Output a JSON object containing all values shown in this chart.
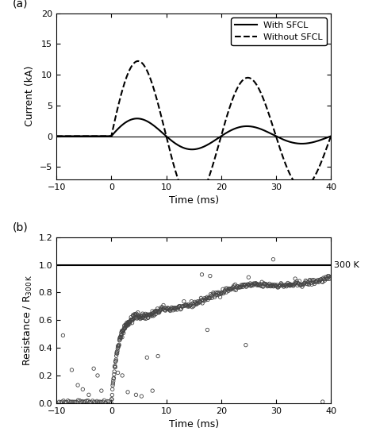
{
  "panel_a": {
    "label": "(a)",
    "xlabel": "Time (ms)",
    "ylabel": "Current (kA)",
    "xlim": [
      -10,
      40
    ],
    "ylim": [
      -7,
      20
    ],
    "yticks": [
      -5,
      0,
      5,
      10,
      15,
      20
    ],
    "xticks": [
      -10,
      0,
      10,
      20,
      30,
      40
    ],
    "hline_y": 0,
    "legend": [
      {
        "label": "With SFCL",
        "linestyle": "solid"
      },
      {
        "label": "Without SFCL",
        "linestyle": "dashed"
      }
    ]
  },
  "panel_b": {
    "label": "(b)",
    "xlabel": "Time (ms)",
    "ylabel": "Resistance / R",
    "xlim": [
      -10,
      40
    ],
    "ylim": [
      0,
      1.2
    ],
    "yticks": [
      0.0,
      0.2,
      0.4,
      0.6,
      0.8,
      1.0,
      1.2
    ],
    "xticks": [
      -10,
      0,
      10,
      20,
      30,
      40
    ],
    "hline_y": 1.0,
    "hline_label": "300 K",
    "scatter_edgecolor": "#444444"
  },
  "figure_bg": "#ffffff",
  "line_color": "#000000"
}
